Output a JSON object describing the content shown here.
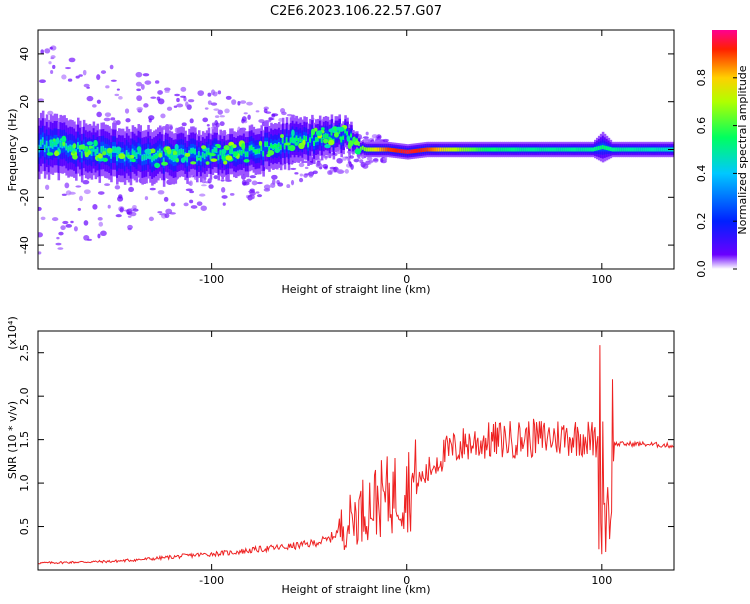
{
  "title": "C2E6.2023.106.22.57.G07",
  "chart_data": [
    {
      "type": "heatmap",
      "xlabel": "Height of straight line (km)",
      "ylabel": "Frequency (Hz)",
      "xlim": [
        -189,
        137
      ],
      "ylim": [
        -50,
        50
      ],
      "xticks": [
        -100,
        0,
        100
      ],
      "yticks": [
        -40,
        -20,
        0,
        20,
        40
      ],
      "colorbar": {
        "label": "Normalized spectral amplitude",
        "range": [
          0,
          1
        ],
        "ticks": [
          0.0,
          0.2,
          0.4,
          0.6,
          0.8
        ],
        "colors": [
          "#ffffff",
          "#4000ff",
          "#0040ff",
          "#00c0ff",
          "#00ff80",
          "#40ff00",
          "#ffff00",
          "#ff8000",
          "#ff0000",
          "#ff0080"
        ]
      },
      "band_profile": {
        "x": [
          -189,
          -160,
          -130,
          -100,
          -80,
          -60,
          -40,
          -30,
          -25,
          -20,
          -10,
          0,
          10,
          20,
          40,
          60,
          80,
          95,
          100,
          105,
          137
        ],
        "center_hz": [
          2,
          -1,
          -3,
          -2,
          -1,
          3,
          5,
          6,
          2,
          0,
          0,
          -1,
          0,
          0,
          0,
          0,
          0,
          0,
          1,
          0,
          0
        ],
        "half_width_hz": [
          8,
          7,
          7,
          6,
          6,
          6,
          5,
          4,
          2,
          2,
          2,
          2,
          2,
          2,
          2,
          2,
          2,
          2,
          4,
          2,
          2
        ],
        "peak_amplitude": [
          0.5,
          0.5,
          0.5,
          0.5,
          0.55,
          0.55,
          0.55,
          0.55,
          0.6,
          0.7,
          0.9,
          0.95,
          0.9,
          0.75,
          0.55,
          0.5,
          0.5,
          0.5,
          0.55,
          0.5,
          0.45
        ]
      }
    },
    {
      "type": "line",
      "xlabel": "Height of straight line (km)",
      "ylabel": "SNR (10 * v/v)",
      "y_multiplier": "(x10⁴)",
      "xlim": [
        -189,
        137
      ],
      "ylim": [
        0,
        27500
      ],
      "xticks": [
        -100,
        0,
        100
      ],
      "yticks": [
        5000,
        10000,
        15000,
        20000,
        25000
      ],
      "ytick_labels": [
        "0.5",
        "1.0",
        "1.5",
        "2.0",
        "2.5"
      ],
      "series": [
        {
          "color": "#ee2222",
          "x": [
            -189,
            -170,
            -150,
            -130,
            -110,
            -90,
            -75,
            -60,
            -50,
            -40,
            -35,
            -30,
            -25,
            -20,
            -15,
            -10,
            -5,
            0,
            5,
            10,
            15,
            20,
            25,
            30,
            40,
            50,
            60,
            70,
            80,
            90,
            95,
            100,
            102,
            104,
            106,
            110,
            120,
            137
          ],
          "y": [
            800,
            900,
            1000,
            1300,
            1700,
            2000,
            2400,
            2700,
            3000,
            3500,
            4500,
            5500,
            6500,
            7500,
            8000,
            8500,
            9000,
            9500,
            10000,
            11000,
            12500,
            13500,
            14000,
            14500,
            14800,
            15000,
            15100,
            15200,
            15300,
            15300,
            15000,
            14500,
            6000,
            9000,
            14500,
            14500,
            14500,
            14300
          ]
        }
      ]
    }
  ]
}
